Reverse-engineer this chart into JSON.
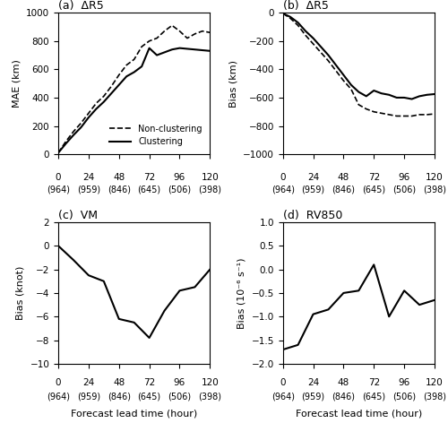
{
  "x_ticks": [
    0,
    24,
    48,
    72,
    96,
    120
  ],
  "x_values": [
    0,
    6,
    12,
    18,
    24,
    30,
    36,
    42,
    48,
    54,
    60,
    66,
    72,
    78,
    84,
    90,
    96,
    102,
    108,
    114,
    120
  ],
  "panel_a_nonclustering": [
    10,
    90,
    160,
    220,
    290,
    360,
    410,
    480,
    560,
    630,
    670,
    760,
    800,
    820,
    870,
    910,
    870,
    820,
    850,
    870,
    860
  ],
  "panel_a_clustering": [
    10,
    75,
    135,
    190,
    260,
    320,
    370,
    430,
    490,
    550,
    580,
    620,
    750,
    700,
    720,
    740,
    750,
    745,
    740,
    735,
    730
  ],
  "panel_b_nonclustering": [
    -5,
    -40,
    -90,
    -160,
    -220,
    -280,
    -340,
    -410,
    -480,
    -540,
    -650,
    -680,
    -700,
    -710,
    -720,
    -730,
    -730,
    -730,
    -720,
    -720,
    -715
  ],
  "panel_b_clustering": [
    -5,
    -30,
    -70,
    -130,
    -180,
    -240,
    -300,
    -370,
    -440,
    -510,
    -560,
    -590,
    -550,
    -570,
    -580,
    -600,
    -600,
    -610,
    -590,
    -580,
    -575
  ],
  "panel_c_x": [
    0,
    12,
    24,
    36,
    48,
    60,
    72,
    84,
    96,
    108,
    120
  ],
  "panel_c_y": [
    0,
    -1.2,
    -2.5,
    -3.0,
    -6.2,
    -6.5,
    -7.8,
    -5.5,
    -3.8,
    -3.5,
    -2.0
  ],
  "panel_d_x": [
    0,
    12,
    24,
    36,
    48,
    60,
    72,
    84,
    96,
    108,
    120
  ],
  "panel_d_y": [
    -1.7,
    -1.6,
    -0.95,
    -0.85,
    -0.5,
    -0.45,
    0.1,
    -1.0,
    -0.45,
    -0.75,
    -0.65
  ],
  "xlabel": "Forecast lead time (hour)",
  "panel_labels": [
    "(a)  ΔR5",
    "(b)  ΔR5",
    "(c)  VM",
    "(d)  RV850"
  ],
  "panel_a_ylabel": "MAE (km)",
  "panel_b_ylabel": "Bias (km)",
  "panel_c_ylabel": "Bias (knot)",
  "panel_d_ylabel": "Bias (10⁻⁶ s⁻¹)",
  "panel_a_ylim": [
    0,
    1000
  ],
  "panel_b_ylim": [
    -1000,
    0
  ],
  "panel_c_ylim": [
    -10,
    2
  ],
  "panel_d_ylim": [
    -2,
    1
  ],
  "panel_a_yticks": [
    0,
    200,
    400,
    600,
    800,
    1000
  ],
  "panel_b_yticks": [
    -1000,
    -800,
    -600,
    -400,
    -200,
    0
  ],
  "panel_c_yticks": [
    -10,
    -8,
    -6,
    -4,
    -2,
    0,
    2
  ],
  "panel_d_yticks": [
    -2,
    -1.5,
    -1,
    -0.5,
    0,
    0.5,
    1
  ],
  "legend_labels": [
    "Non-clustering",
    "Clustering"
  ],
  "tick_nums": [
    "0",
    "24",
    "48",
    "72",
    "96",
    "120"
  ],
  "tick_counts": [
    "(964)",
    "(959)",
    "(846)",
    "(645)",
    "(506)",
    "(398)"
  ],
  "line_color": "black"
}
